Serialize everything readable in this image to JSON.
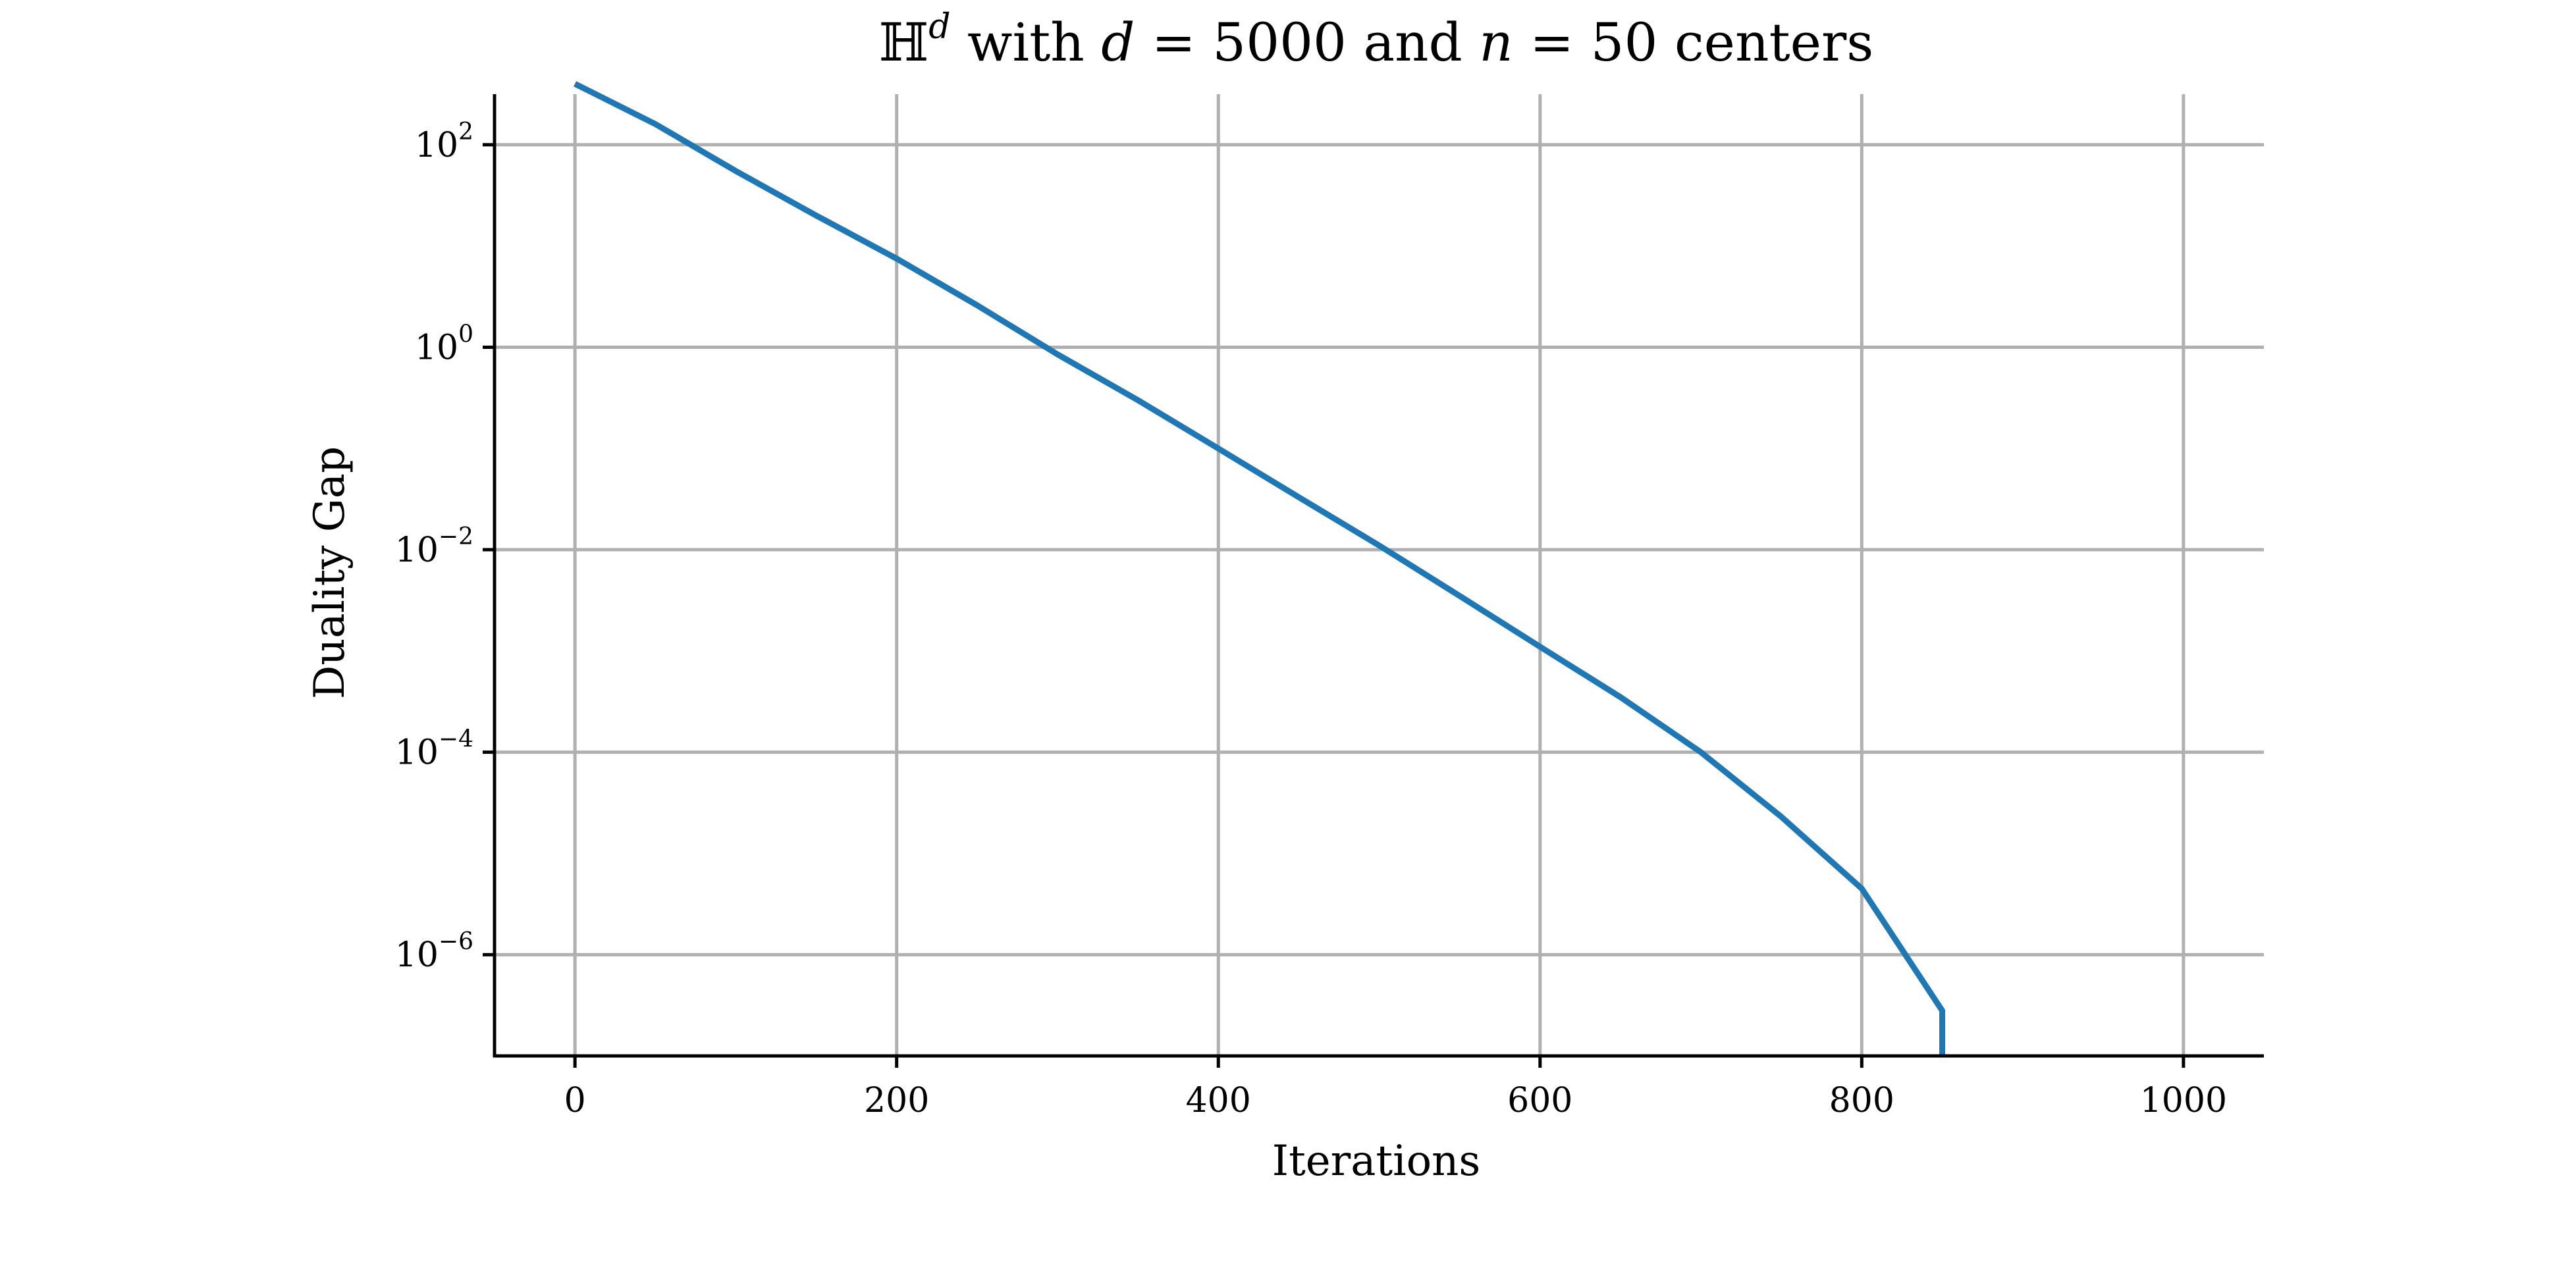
{
  "chart_data": {
    "type": "line",
    "title": {
      "space": "ℍ",
      "space_sup": "d",
      "w1": " with ",
      "v1": "d",
      "eq1": " = 5000 and ",
      "v2": "n",
      "eq2": " = 50 centers"
    },
    "xlabel": "Iterations",
    "ylabel": "Duality Gap",
    "xlim": [
      -50,
      1050
    ],
    "ylim_log10": [
      -7,
      2.5
    ],
    "yscale": "log",
    "grid": true,
    "x_ticks": [
      {
        "value": 0,
        "label": "0"
      },
      {
        "value": 200,
        "label": "200"
      },
      {
        "value": 400,
        "label": "400"
      },
      {
        "value": 600,
        "label": "600"
      },
      {
        "value": 800,
        "label": "800"
      },
      {
        "value": 1000,
        "label": "1000"
      }
    ],
    "y_ticks": [
      {
        "exp": 2,
        "base": "10",
        "sup": "2"
      },
      {
        "exp": 0,
        "base": "10",
        "sup": "0"
      },
      {
        "exp": -2,
        "base": "10",
        "sup": "−2"
      },
      {
        "exp": -4,
        "base": "10",
        "sup": "−4"
      },
      {
        "exp": -6,
        "base": "10",
        "sup": "−6"
      }
    ],
    "series": [
      {
        "color": "#1f77b4",
        "x": [
          0,
          50,
          100,
          150,
          200,
          250,
          300,
          350,
          400,
          450,
          500,
          550,
          600,
          650,
          700,
          750,
          800,
          850,
          850
        ],
        "y": [
          400,
          160,
          55,
          20,
          7.5,
          2.6,
          0.85,
          0.3,
          0.1,
          0.033,
          0.011,
          0.0035,
          0.0011,
          0.00035,
          0.0001,
          2.3e-05,
          4.5e-06,
          2.8e-07,
          8e-08
        ]
      }
    ]
  }
}
